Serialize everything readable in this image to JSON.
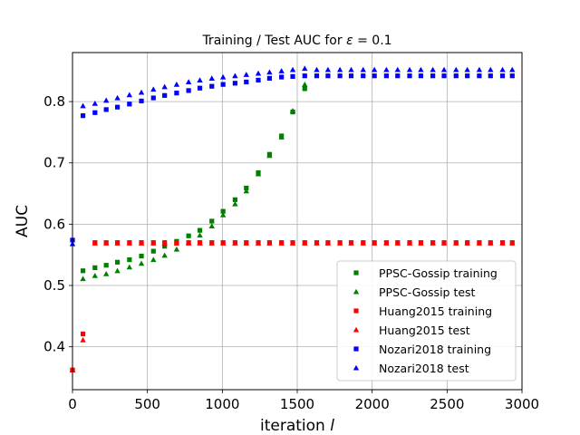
{
  "chart_data": {
    "type": "scatter",
    "title_prefix": "Training / Test AUC for ",
    "title_symbol": "ε",
    "title_suffix": " = 0.1",
    "xlabel_text": "iteration ",
    "xlabel_var": "l",
    "ylabel": "AUC",
    "xlim": [
      0,
      3000
    ],
    "ylim": [
      0.33,
      0.88
    ],
    "xticks": [
      0,
      500,
      1000,
      1500,
      2000,
      2500,
      3000
    ],
    "yticks": [
      0.4,
      0.5,
      0.6,
      0.7,
      0.8
    ],
    "grid": true,
    "legend_position": "lower-right",
    "series": [
      {
        "name": "PPSC-Gossip training",
        "color": "#008000",
        "marker": "square",
        "x": [
          0,
          70,
          150,
          225,
          300,
          380,
          460,
          540,
          615,
          695,
          775,
          850,
          930,
          1005,
          1085,
          1160,
          1240,
          1315,
          1395,
          1470,
          1550
        ],
        "y": [
          0.362,
          0.524,
          0.529,
          0.533,
          0.538,
          0.542,
          0.548,
          0.556,
          0.564,
          0.572,
          0.581,
          0.59,
          0.605,
          0.621,
          0.64,
          0.659,
          0.684,
          0.714,
          0.744,
          0.783,
          0.821
        ]
      },
      {
        "name": "PPSC-Gossip test",
        "color": "#008000",
        "marker": "triangle",
        "x": [
          0,
          70,
          150,
          225,
          300,
          380,
          460,
          540,
          615,
          695,
          775,
          850,
          930,
          1005,
          1085,
          1160,
          1240,
          1315,
          1395,
          1470,
          1550
        ],
        "y": [
          0.362,
          0.511,
          0.516,
          0.519,
          0.524,
          0.53,
          0.536,
          0.542,
          0.549,
          0.559,
          0.57,
          0.582,
          0.597,
          0.615,
          0.633,
          0.654,
          0.682,
          0.712,
          0.742,
          0.785,
          0.828
        ]
      },
      {
        "name": "Huang2015 training",
        "color": "#ff0000",
        "marker": "square",
        "x": [
          0,
          70,
          150,
          225,
          300,
          380,
          460,
          540,
          615,
          695,
          775,
          850,
          930,
          1005,
          1085,
          1160,
          1240,
          1315,
          1395,
          1470,
          1550,
          1630,
          1705,
          1785,
          1860,
          1940,
          2015,
          2095,
          2170,
          2250,
          2325,
          2405,
          2480,
          2560,
          2635,
          2715,
          2790,
          2870,
          2935
        ],
        "y": [
          0.362,
          0.421,
          0.57,
          0.57,
          0.57,
          0.57,
          0.57,
          0.57,
          0.57,
          0.57,
          0.57,
          0.57,
          0.57,
          0.57,
          0.57,
          0.57,
          0.57,
          0.57,
          0.57,
          0.57,
          0.57,
          0.57,
          0.57,
          0.57,
          0.57,
          0.57,
          0.57,
          0.57,
          0.57,
          0.57,
          0.57,
          0.57,
          0.57,
          0.57,
          0.57,
          0.57,
          0.57,
          0.57,
          0.57
        ]
      },
      {
        "name": "Huang2015 test",
        "color": "#ff0000",
        "marker": "triangle",
        "x": [
          0,
          70,
          150,
          225,
          300,
          380,
          460,
          540,
          615,
          695,
          775,
          850,
          930,
          1005,
          1085,
          1160,
          1240,
          1315,
          1395,
          1470,
          1550,
          1630,
          1705,
          1785,
          1860,
          1940,
          2015,
          2095,
          2170,
          2250,
          2325,
          2405,
          2480,
          2560,
          2635,
          2715,
          2790,
          2870,
          2935
        ],
        "y": [
          0.362,
          0.411,
          0.569,
          0.569,
          0.569,
          0.569,
          0.569,
          0.569,
          0.569,
          0.569,
          0.569,
          0.569,
          0.569,
          0.569,
          0.569,
          0.569,
          0.569,
          0.569,
          0.569,
          0.569,
          0.569,
          0.569,
          0.569,
          0.569,
          0.569,
          0.569,
          0.569,
          0.569,
          0.569,
          0.569,
          0.569,
          0.569,
          0.569,
          0.569,
          0.569,
          0.569,
          0.569,
          0.569,
          0.569
        ]
      },
      {
        "name": "Nozari2018 training",
        "color": "#0000ff",
        "marker": "square",
        "x": [
          0,
          70,
          150,
          225,
          300,
          380,
          460,
          540,
          615,
          695,
          775,
          850,
          930,
          1005,
          1085,
          1160,
          1240,
          1315,
          1395,
          1470,
          1550,
          1630,
          1705,
          1785,
          1860,
          1940,
          2015,
          2095,
          2170,
          2250,
          2325,
          2405,
          2480,
          2560,
          2635,
          2715,
          2790,
          2870,
          2935
        ],
        "y": [
          0.574,
          0.777,
          0.782,
          0.787,
          0.791,
          0.796,
          0.801,
          0.806,
          0.81,
          0.814,
          0.818,
          0.822,
          0.825,
          0.828,
          0.83,
          0.832,
          0.835,
          0.838,
          0.84,
          0.841,
          0.842,
          0.842,
          0.842,
          0.842,
          0.842,
          0.842,
          0.842,
          0.842,
          0.842,
          0.842,
          0.842,
          0.842,
          0.842,
          0.842,
          0.842,
          0.842,
          0.842,
          0.842,
          0.842
        ]
      },
      {
        "name": "Nozari2018 test",
        "color": "#0000ff",
        "marker": "triangle",
        "x": [
          0,
          70,
          150,
          225,
          300,
          380,
          460,
          540,
          615,
          695,
          775,
          850,
          930,
          1005,
          1085,
          1160,
          1240,
          1315,
          1395,
          1470,
          1550,
          1630,
          1705,
          1785,
          1860,
          1940,
          2015,
          2095,
          2170,
          2250,
          2325,
          2405,
          2480,
          2560,
          2635,
          2715,
          2790,
          2870,
          2935
        ],
        "y": [
          0.568,
          0.793,
          0.797,
          0.802,
          0.806,
          0.811,
          0.815,
          0.82,
          0.824,
          0.828,
          0.832,
          0.835,
          0.838,
          0.84,
          0.842,
          0.844,
          0.846,
          0.848,
          0.85,
          0.852,
          0.854,
          0.852,
          0.852,
          0.852,
          0.852,
          0.852,
          0.852,
          0.852,
          0.852,
          0.852,
          0.852,
          0.852,
          0.852,
          0.852,
          0.852,
          0.852,
          0.852,
          0.852,
          0.852
        ]
      }
    ]
  }
}
